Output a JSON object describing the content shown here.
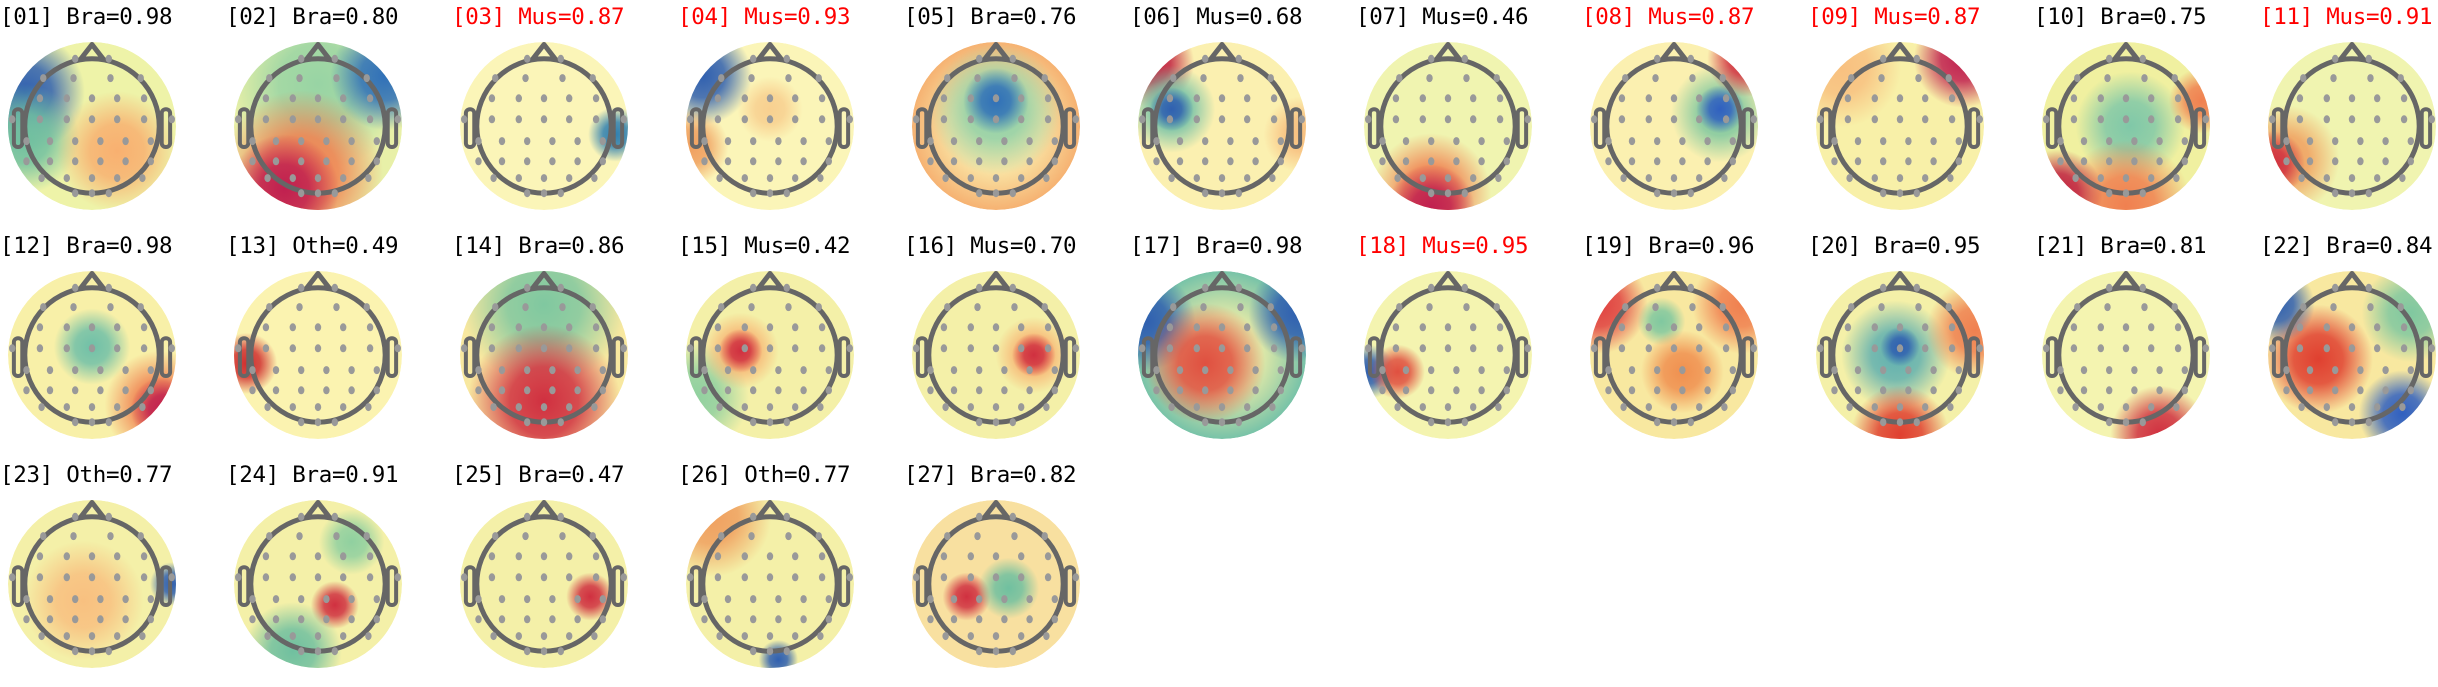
{
  "chart_data": {
    "type": "topomap-grid",
    "colormap": "Spectral_r",
    "label_colors": {
      "normal": "#000000",
      "flagged": "#ff0000"
    },
    "components": [
      {
        "label": "[01] Bra=0.98",
        "flagged": false
      },
      {
        "label": "[02] Bra=0.80",
        "flagged": false
      },
      {
        "label": "[03] Mus=0.87",
        "flagged": true
      },
      {
        "label": "[04] Mus=0.93",
        "flagged": true
      },
      {
        "label": "[05] Bra=0.76",
        "flagged": false
      },
      {
        "label": "[06] Mus=0.68",
        "flagged": false
      },
      {
        "label": "[07] Mus=0.46",
        "flagged": false
      },
      {
        "label": "[08] Mus=0.87",
        "flagged": true
      },
      {
        "label": "[09] Mus=0.87",
        "flagged": true
      },
      {
        "label": "[10] Bra=0.75",
        "flagged": false
      },
      {
        "label": "[11] Mus=0.91",
        "flagged": true
      },
      {
        "label": "[12] Bra=0.98",
        "flagged": false
      },
      {
        "label": "[13] Oth=0.49",
        "flagged": false
      },
      {
        "label": "[14] Bra=0.86",
        "flagged": false
      },
      {
        "label": "[15] Mus=0.42",
        "flagged": false
      },
      {
        "label": "[16] Mus=0.70",
        "flagged": false
      },
      {
        "label": "[17] Bra=0.98",
        "flagged": false
      },
      {
        "label": "[18] Mus=0.95",
        "flagged": true
      },
      {
        "label": "[19] Bra=0.96",
        "flagged": false
      },
      {
        "label": "[20] Bra=0.95",
        "flagged": false
      },
      {
        "label": "[21] Bra=0.81",
        "flagged": false
      },
      {
        "label": "[22] Bra=0.84",
        "flagged": false
      },
      {
        "label": "[23] Oth=0.77",
        "flagged": false
      },
      {
        "label": "[24] Bra=0.91",
        "flagged": false
      },
      {
        "label": "[25] Bra=0.47",
        "flagged": false
      },
      {
        "label": "[26] Oth=0.77",
        "flagged": false
      },
      {
        "label": "[27] Bra=0.82",
        "flagged": false
      }
    ]
  }
}
